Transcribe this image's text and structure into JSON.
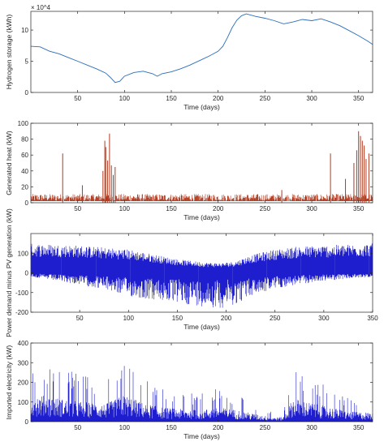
{
  "chart_data": [
    {
      "type": "line",
      "title": "",
      "xlabel": "Time (days)",
      "ylabel": "Hydrogen storage (kWh)",
      "exponent_label": "× 10^4",
      "xlim": [
        0,
        365
      ],
      "ylim": [
        0,
        13
      ],
      "xticks": [
        50,
        100,
        150,
        200,
        250,
        300,
        350
      ],
      "yticks": [
        0,
        5,
        10
      ],
      "series": [
        {
          "color": "#2a6ebb",
          "x": [
            0,
            10,
            20,
            30,
            40,
            50,
            60,
            70,
            80,
            85,
            90,
            95,
            100,
            110,
            120,
            130,
            135,
            140,
            150,
            160,
            170,
            180,
            190,
            200,
            205,
            210,
            215,
            220,
            225,
            230,
            240,
            250,
            260,
            270,
            280,
            290,
            300,
            310,
            320,
            330,
            340,
            350,
            360,
            365
          ],
          "y": [
            7.4,
            7.3,
            6.6,
            6.2,
            5.6,
            5.0,
            4.4,
            3.8,
            3.1,
            2.4,
            1.6,
            1.8,
            2.6,
            3.2,
            3.4,
            3.0,
            2.6,
            3.0,
            3.3,
            3.8,
            4.4,
            5.1,
            5.8,
            6.6,
            7.4,
            8.8,
            10.4,
            11.6,
            12.3,
            12.6,
            12.2,
            11.9,
            11.5,
            11.0,
            11.3,
            11.7,
            11.5,
            11.8,
            11.3,
            10.7,
            9.9,
            9.1,
            8.2,
            7.7
          ]
        }
      ]
    },
    {
      "type": "line",
      "title": "",
      "xlabel": "Time (days)",
      "ylabel": "Generated heat (kW)",
      "xlim": [
        0,
        365
      ],
      "ylim": [
        0,
        100
      ],
      "xticks": [
        50,
        100,
        150,
        200,
        250,
        300,
        350
      ],
      "yticks": [
        0,
        20,
        40,
        60,
        80,
        100
      ],
      "baseline_band": [
        2,
        11
      ],
      "series": [
        {
          "color": "#b03a1f",
          "spikes": [
            {
              "x": 34,
              "y": 62
            },
            {
              "x": 55,
              "y": 22
            },
            {
              "x": 77,
              "y": 40
            },
            {
              "x": 79,
              "y": 78
            },
            {
              "x": 80,
              "y": 70
            },
            {
              "x": 82,
              "y": 53
            },
            {
              "x": 84,
              "y": 87
            },
            {
              "x": 86,
              "y": 47
            },
            {
              "x": 88,
              "y": 35
            },
            {
              "x": 90,
              "y": 45
            },
            {
              "x": 268,
              "y": 16
            },
            {
              "x": 320,
              "y": 62
            },
            {
              "x": 336,
              "y": 30
            },
            {
              "x": 345,
              "y": 50
            },
            {
              "x": 348,
              "y": 66
            },
            {
              "x": 350,
              "y": 90
            },
            {
              "x": 352,
              "y": 84
            },
            {
              "x": 354,
              "y": 78
            },
            {
              "x": 356,
              "y": 72
            },
            {
              "x": 358,
              "y": 55
            },
            {
              "x": 361,
              "y": 62
            }
          ]
        }
      ]
    },
    {
      "type": "line",
      "title": "",
      "xlabel": "Time (days)",
      "ylabel": "Power demand minus PV generation (kW)",
      "xlim": [
        0,
        350
      ],
      "ylim": [
        -200,
        200
      ],
      "xticks": [
        50,
        100,
        150,
        200,
        250,
        300,
        350
      ],
      "yticks": [
        -200,
        -100,
        0,
        100
      ],
      "envelope": {
        "x": [
          0,
          25,
          50,
          75,
          100,
          125,
          150,
          175,
          195,
          210,
          225,
          250,
          275,
          300,
          325,
          350
        ],
        "upper": [
          150,
          145,
          140,
          130,
          120,
          95,
          70,
          55,
          50,
          60,
          90,
          120,
          135,
          140,
          145,
          150
        ],
        "lower": [
          -20,
          -40,
          -60,
          -85,
          -120,
          -140,
          -155,
          -170,
          -180,
          -160,
          -120,
          -80,
          -60,
          -40,
          -30,
          -20
        ]
      },
      "series": [
        {
          "color": "#1e1ecf"
        }
      ]
    },
    {
      "type": "line",
      "title": "",
      "xlabel": "Time (days)",
      "ylabel": "Imported electricity (kW)",
      "xlim": [
        0,
        365
      ],
      "ylim": [
        0,
        400
      ],
      "xticks": [
        50,
        100,
        150,
        200,
        250,
        300,
        350
      ],
      "yticks": [
        0,
        100,
        200,
        300,
        400
      ],
      "envelope": {
        "x": [
          0,
          20,
          40,
          60,
          80,
          100,
          120,
          140,
          160,
          180,
          200,
          220,
          240,
          260,
          270,
          280,
          300,
          320,
          340,
          365
        ],
        "upper": [
          330,
          300,
          260,
          230,
          210,
          320,
          220,
          170,
          150,
          140,
          170,
          140,
          90,
          50,
          60,
          280,
          220,
          170,
          120,
          110
        ]
      },
      "series": [
        {
          "color": "#1e1ecf"
        }
      ]
    }
  ]
}
